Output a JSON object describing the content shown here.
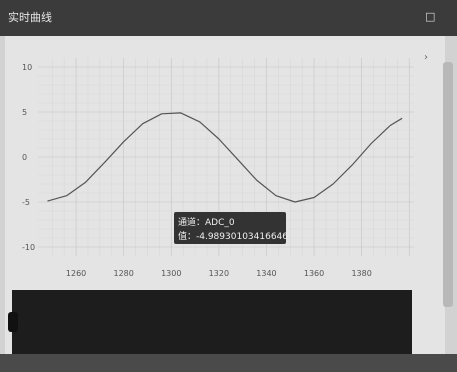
{
  "window": {
    "title": "实时曲线",
    "close_icon": "restore-icon"
  },
  "chart_data": {
    "type": "line",
    "title": "",
    "xlabel": "",
    "ylabel": "",
    "xlim": [
      1244,
      1402
    ],
    "ylim": [
      -11,
      11
    ],
    "x_ticks": [
      1260,
      1280,
      1300,
      1320,
      1340,
      1360,
      1380
    ],
    "y_ticks": [
      10,
      5,
      0,
      -5,
      -10
    ],
    "grid": true,
    "series": [
      {
        "name": "",
        "color": "#555555",
        "x": [
          1248,
          1256,
          1264,
          1272,
          1280,
          1288,
          1296,
          1304,
          1312,
          1320,
          1328,
          1336,
          1344,
          1352,
          1360,
          1368,
          1376,
          1384,
          1392,
          1397
        ],
        "y": [
          -4.9,
          -4.3,
          -2.8,
          -0.6,
          1.7,
          3.7,
          4.8,
          4.9,
          3.9,
          2.0,
          -0.3,
          -2.6,
          -4.3,
          -5.0,
          -4.5,
          -3.0,
          -0.9,
          1.5,
          3.5,
          4.3
        ]
      }
    ]
  },
  "tooltip": {
    "series_label": "通道：ADC_0",
    "value_label": "值：-4.98930103416646"
  }
}
